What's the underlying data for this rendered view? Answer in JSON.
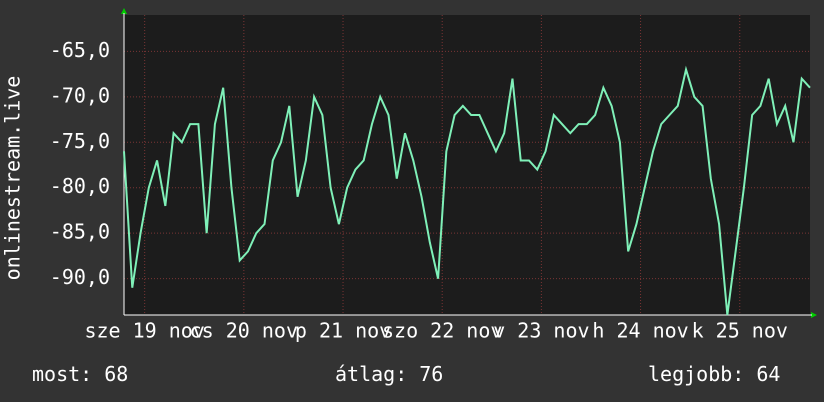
{
  "chart_data": {
    "type": "line",
    "y_label": "onlinestream.live",
    "xlim": [
      0,
      166
    ],
    "xticks": [
      {
        "value": 5,
        "label": "sze 19 nov"
      },
      {
        "value": 29,
        "label": "cs 20 nov"
      },
      {
        "value": 53,
        "label": "p 21 nov"
      },
      {
        "value": 77,
        "label": "szo 22 nov"
      },
      {
        "value": 101,
        "label": "v 23 nov"
      },
      {
        "value": 125,
        "label": "h 24 nov"
      },
      {
        "value": 149,
        "label": "k 25 nov"
      }
    ],
    "ylim": [
      -94,
      -61
    ],
    "yticks": [
      {
        "value": -65,
        "label": "-65,0"
      },
      {
        "value": -70,
        "label": "-70,0"
      },
      {
        "value": -75,
        "label": "-75,0"
      },
      {
        "value": -80,
        "label": "-80,0"
      },
      {
        "value": -85,
        "label": "-85,0"
      },
      {
        "value": -90,
        "label": "-90,0"
      }
    ],
    "grid": true,
    "x": [
      0,
      2,
      4,
      6,
      8,
      10,
      12,
      14,
      16,
      18,
      20,
      22,
      24,
      26,
      28,
      30,
      32,
      34,
      36,
      38,
      40,
      42,
      44,
      46,
      48,
      50,
      52,
      54,
      56,
      58,
      60,
      62,
      64,
      66,
      68,
      70,
      72,
      74,
      76,
      78,
      80,
      82,
      84,
      86,
      88,
      90,
      92,
      94,
      96,
      98,
      100,
      102,
      104,
      106,
      108,
      110,
      112,
      114,
      116,
      118,
      120,
      122,
      124,
      126,
      128,
      130,
      132,
      134,
      136,
      138,
      140,
      142,
      144,
      146,
      148,
      150,
      152,
      154,
      156,
      158,
      160,
      162,
      164,
      166
    ],
    "series": [
      {
        "color": "#7ff0b8",
        "values": [
          -76,
          -91,
          -85,
          -80,
          -77,
          -82,
          -74,
          -75,
          -73,
          -73,
          -85,
          -73,
          -69,
          -80,
          -88,
          -87,
          -85,
          -84,
          -77,
          -75,
          -71,
          -81,
          -77,
          -70,
          -72,
          -80,
          -84,
          -80,
          -78,
          -77,
          -73,
          -70,
          -72,
          -79,
          -74,
          -77,
          -81,
          -86,
          -90,
          -76,
          -72,
          -71,
          -72,
          -72,
          -74,
          -76,
          -74,
          -68,
          -77,
          -77,
          -78,
          -76,
          -72,
          -73,
          -74,
          -73,
          -73,
          -72,
          -69,
          -71,
          -75,
          -87,
          -84,
          -80,
          -76,
          -73,
          -72,
          -71,
          -67,
          -70,
          -71,
          -79,
          -84,
          -94,
          -87,
          -80,
          -72,
          -71,
          -68,
          -73,
          -71,
          -75,
          -68,
          -69
        ]
      }
    ],
    "stats": [
      {
        "label": "most:",
        "value": 68
      },
      {
        "label": "átlag:",
        "value": 76
      },
      {
        "label": "legjobb:",
        "value": 64
      }
    ]
  }
}
